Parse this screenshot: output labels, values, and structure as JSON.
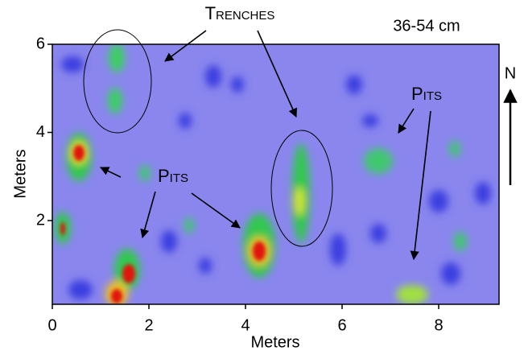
{
  "chart_data": {
    "type": "map",
    "title": "36-54 cm",
    "x_label": "Meters",
    "y_label": "Meters",
    "xlim": [
      0,
      9.25
    ],
    "ylim": [
      0.1,
      6
    ],
    "xticks": [
      0,
      2,
      4,
      6,
      8
    ],
    "yticks": [
      2,
      4,
      6
    ],
    "annotations": [
      "Trenches",
      "Pits",
      "Pits"
    ],
    "north": "N"
  }
}
